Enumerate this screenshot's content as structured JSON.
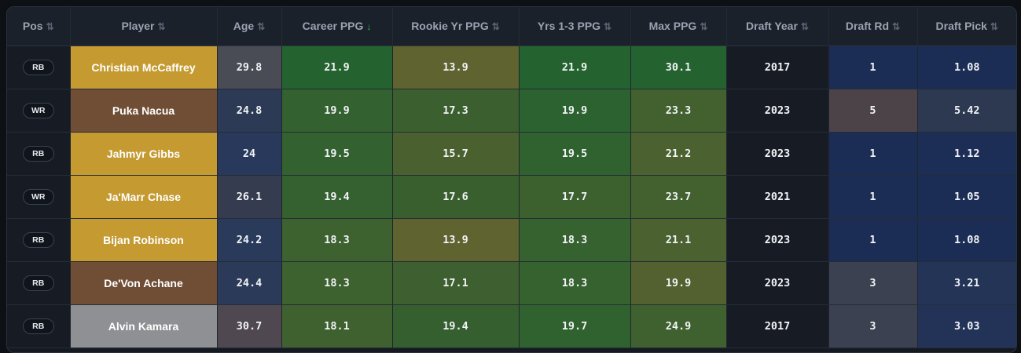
{
  "columns": [
    {
      "label": "Pos",
      "sort": "⇅"
    },
    {
      "label": "Player",
      "sort": "⇅"
    },
    {
      "label": "Age",
      "sort": "⇅"
    },
    {
      "label": "Career PPG",
      "sort": "↓",
      "active": true
    },
    {
      "label": "Rookie Yr PPG",
      "sort": "⇅"
    },
    {
      "label": "Yrs 1-3 PPG",
      "sort": "⇅"
    },
    {
      "label": "Max PPG",
      "sort": "⇅"
    },
    {
      "label": "Draft Year",
      "sort": "⇅"
    },
    {
      "label": "Draft Rd",
      "sort": "⇅"
    },
    {
      "label": "Draft Pick",
      "sort": "⇅"
    }
  ],
  "rows": [
    {
      "pos": "RB",
      "player": "Christian McCaffrey",
      "age": "29.8",
      "career": "21.9",
      "rookie": "13.9",
      "yrs13": "21.9",
      "max": "30.1",
      "draft_year": "2017",
      "draft_rd": "1",
      "draft_pick": "1.08",
      "colors": {
        "player": "#c49a31",
        "age": "#4a4c55",
        "career": "#24632f",
        "rookie": "#5e6330",
        "yrs13": "#24632f",
        "max": "#24632f",
        "draft_rd": "#1c2d55",
        "draft_pick": "#1c2d55"
      }
    },
    {
      "pos": "WR",
      "player": "Puka Nacua",
      "age": "24.8",
      "career": "19.9",
      "rookie": "17.3",
      "yrs13": "19.9",
      "max": "23.3",
      "draft_year": "2023",
      "draft_rd": "5",
      "draft_pick": "5.42",
      "colors": {
        "player": "#6f4e35",
        "age": "#2d3a55",
        "career": "#33612f",
        "rookie": "#3b5f2f",
        "yrs13": "#2c6230",
        "max": "#43612f",
        "draft_rd": "#4c4348",
        "draft_pick": "#2c3950"
      }
    },
    {
      "pos": "RB",
      "player": "Jahmyr Gibbs",
      "age": "24",
      "career": "19.5",
      "rookie": "15.7",
      "yrs13": "19.5",
      "max": "21.2",
      "draft_year": "2023",
      "draft_rd": "1",
      "draft_pick": "1.12",
      "colors": {
        "player": "#c49a31",
        "age": "#29395c",
        "career": "#33612f",
        "rookie": "#4a612f",
        "yrs13": "#2f622f",
        "max": "#4b612f",
        "draft_rd": "#1c2d55",
        "draft_pick": "#1d2e56"
      }
    },
    {
      "pos": "WR",
      "player": "Ja'Marr Chase",
      "age": "26.1",
      "career": "19.4",
      "rookie": "17.6",
      "yrs13": "17.7",
      "max": "23.7",
      "draft_year": "2021",
      "draft_rd": "1",
      "draft_pick": "1.05",
      "colors": {
        "player": "#c49a31",
        "age": "#353c4f",
        "career": "#34612f",
        "rookie": "#3a5f2f",
        "yrs13": "#3c612f",
        "max": "#42612f",
        "draft_rd": "#1c2d55",
        "draft_pick": "#1c2d55"
      }
    },
    {
      "pos": "RB",
      "player": "Bijan Robinson",
      "age": "24.2",
      "career": "18.3",
      "rookie": "13.9",
      "yrs13": "18.3",
      "max": "21.1",
      "draft_year": "2023",
      "draft_rd": "1",
      "draft_pick": "1.08",
      "colors": {
        "player": "#c49a31",
        "age": "#2a3a5a",
        "career": "#3d612f",
        "rookie": "#5e6330",
        "yrs13": "#36622f",
        "max": "#4b612f",
        "draft_rd": "#1c2d55",
        "draft_pick": "#1c2d55"
      }
    },
    {
      "pos": "RB",
      "player": "De'Von Achane",
      "age": "24.4",
      "career": "18.3",
      "rookie": "17.1",
      "yrs13": "18.3",
      "max": "19.9",
      "draft_year": "2023",
      "draft_rd": "3",
      "draft_pick": "3.21",
      "colors": {
        "player": "#6f4e35",
        "age": "#2b3a58",
        "career": "#3d612f",
        "rookie": "#3e5f2f",
        "yrs13": "#36622f",
        "max": "#52612f",
        "draft_rd": "#3b4150",
        "draft_pick": "#243457"
      }
    },
    {
      "pos": "RB",
      "player": "Alvin Kamara",
      "age": "30.7",
      "career": "18.1",
      "rookie": "19.4",
      "yrs13": "19.7",
      "max": "24.9",
      "draft_year": "2017",
      "draft_rd": "3",
      "draft_pick": "3.03",
      "colors": {
        "player": "#8e9093",
        "age": "#4f4850",
        "career": "#3e612f",
        "rookie": "#355f2f",
        "yrs13": "#30622f",
        "max": "#3f612f",
        "draft_rd": "#3b4150",
        "draft_pick": "#233357"
      }
    }
  ]
}
